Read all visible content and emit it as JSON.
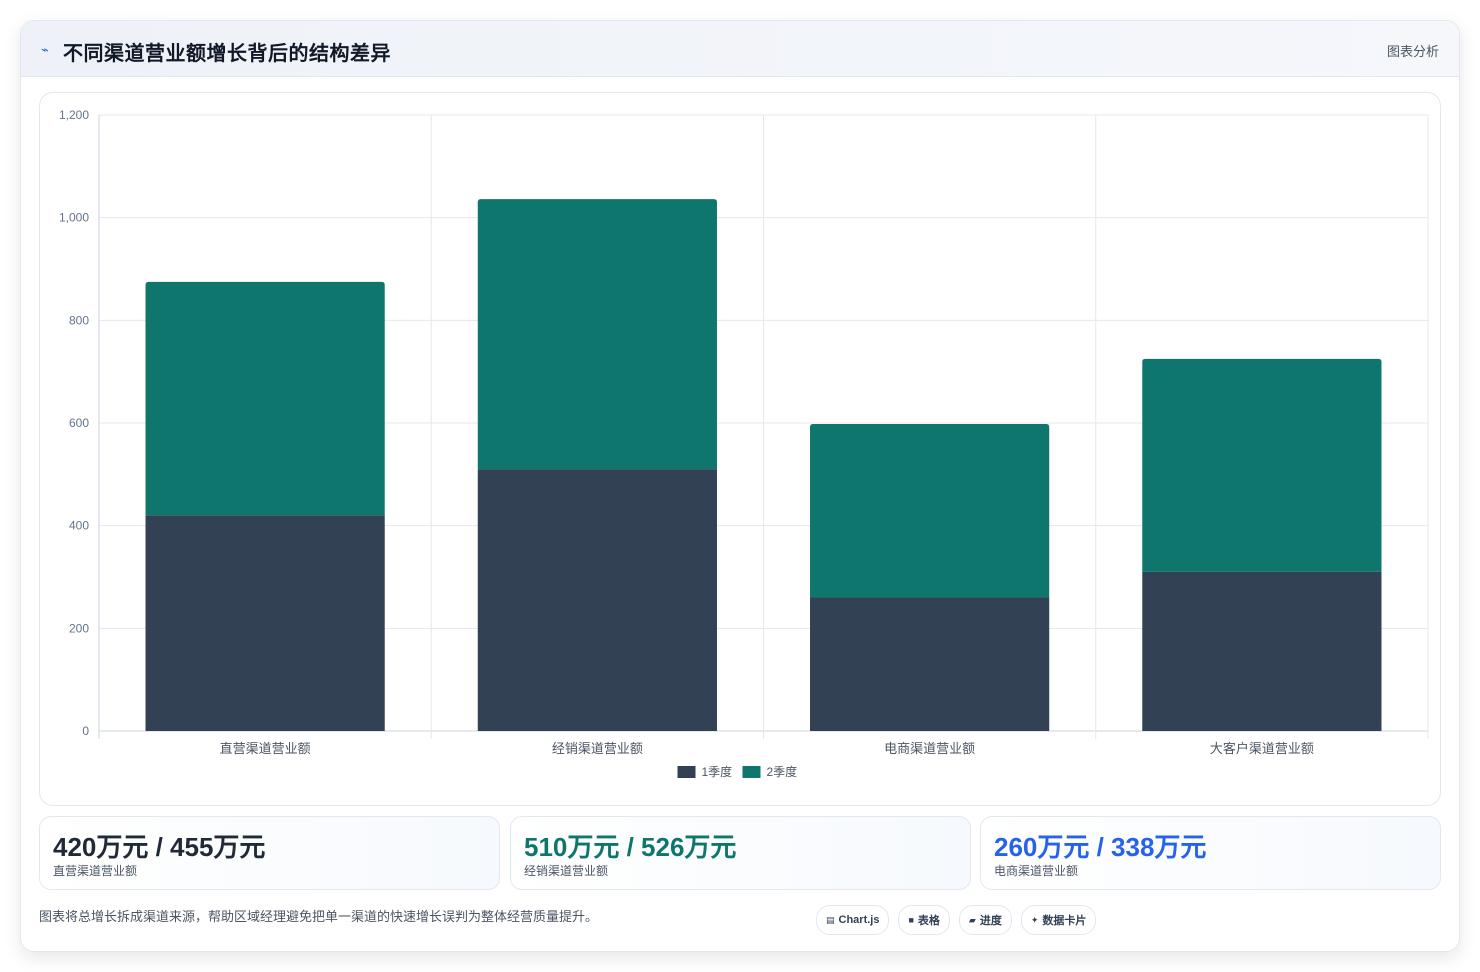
{
  "header": {
    "title_icon": "chart-line-icon",
    "title": "不同渠道营业额增长背后的结构差异",
    "right_label": "图表分析"
  },
  "chart_data": {
    "type": "bar",
    "stacked": true,
    "categories": [
      "直营渠道营业额",
      "经销渠道营业额",
      "电商渠道营业额",
      "大客户渠道营业额"
    ],
    "series": [
      {
        "name": "1季度",
        "color": "#334155",
        "values": [
          420,
          510,
          260,
          310
        ]
      },
      {
        "name": "2季度",
        "color": "#0f766e",
        "values": [
          455,
          526,
          338,
          415
        ]
      }
    ],
    "ylim": [
      0,
      1200
    ],
    "yticks": [
      "0",
      "200",
      "400",
      "600",
      "800",
      "1,000",
      "1,200"
    ],
    "grid": true,
    "legend_position": "bottom"
  },
  "stats": [
    {
      "value": "420万元 / 455万元",
      "label": "直营渠道营业额",
      "color": "#1f2937"
    },
    {
      "value": "510万元 / 526万元",
      "label": "经销渠道营业额",
      "color": "#0f766e"
    },
    {
      "value": "260万元 / 338万元",
      "label": "电商渠道营业额",
      "color": "#2563eb"
    }
  ],
  "footnote": "图表将总增长拆成渠道来源，帮助区域经理避免把单一渠道的快速增长误判为整体经营质量提升。",
  "tags": [
    {
      "icon": "▤",
      "label": "Chart.js"
    },
    {
      "icon": "■",
      "label": "表格"
    },
    {
      "icon": "▰",
      "label": "进度"
    },
    {
      "icon": "✦",
      "label": "数据卡片"
    }
  ]
}
